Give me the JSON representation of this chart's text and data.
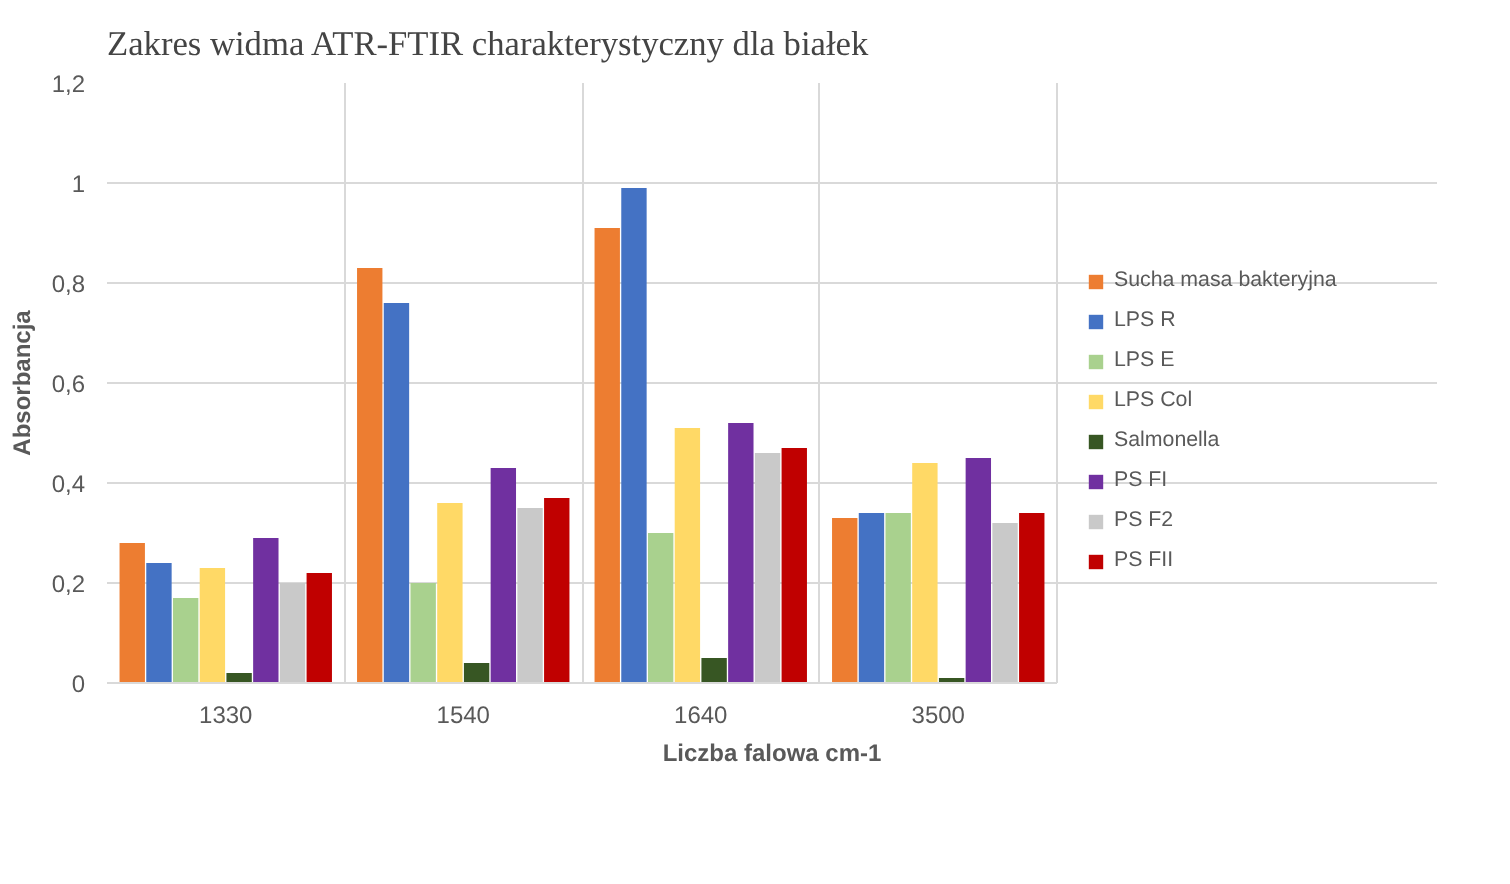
{
  "chart_data": {
    "type": "bar",
    "title": "Zakres widma ATR-FTIR charakterystyczny dla białek",
    "xlabel": "Liczba falowa cm-1",
    "ylabel": "Absorbancja",
    "categories": [
      "1330",
      "1540",
      "1640",
      "3500"
    ],
    "series": [
      {
        "name": "Sucha masa bakteryjna",
        "color": "#ed7d31",
        "values": [
          0.28,
          0.83,
          0.91,
          0.33
        ]
      },
      {
        "name": "LPS R",
        "color": "#4472c4",
        "values": [
          0.24,
          0.76,
          0.99,
          0.34
        ]
      },
      {
        "name": "LPS E",
        "color": "#a9d18e",
        "values": [
          0.17,
          0.2,
          0.3,
          0.34
        ]
      },
      {
        "name": "LPS Col",
        "color": "#ffd966",
        "values": [
          0.23,
          0.36,
          0.51,
          0.44
        ]
      },
      {
        "name": "Salmonella",
        "color": "#375623",
        "values": [
          0.02,
          0.04,
          0.05,
          0.01
        ]
      },
      {
        "name": "PS FI",
        "color": "#7030a0",
        "values": [
          0.29,
          0.43,
          0.52,
          0.45
        ]
      },
      {
        "name": "PS F2",
        "color": "#c9c9c9",
        "values": [
          0.2,
          0.35,
          0.46,
          0.32
        ]
      },
      {
        "name": "PS FII",
        "color": "#c00000",
        "values": [
          0.22,
          0.37,
          0.47,
          0.34
        ]
      }
    ],
    "ylim": [
      0,
      1.2
    ],
    "yticks": [
      0,
      {
        "value": 0.2,
        "label": "0,2"
      },
      {
        "value": 0.4,
        "label": "0,4"
      },
      {
        "value": 0.6,
        "label": "0,6"
      },
      {
        "value": 0.8,
        "label": "0,8"
      },
      1,
      {
        "value": 1.2,
        "label": "1,2"
      }
    ],
    "grid": true,
    "legend": "right"
  }
}
